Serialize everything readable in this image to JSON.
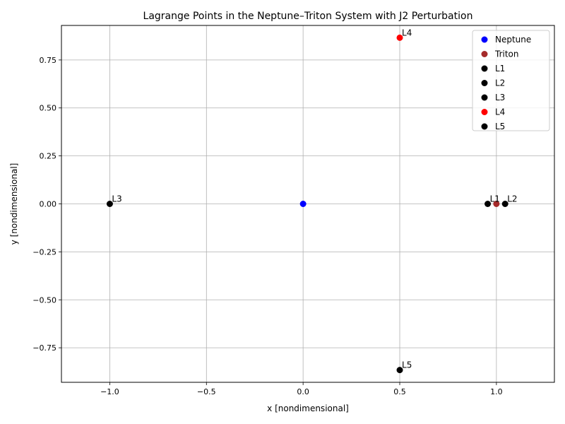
{
  "chart_data": {
    "type": "scatter",
    "title": "Lagrange Points in the Neptune–Triton System with J2 Perturbation",
    "xlabel": "x [nondimensional]",
    "ylabel": "y [nondimensional]",
    "xlim": [
      -1.25,
      1.3
    ],
    "ylim": [
      -0.93,
      0.93
    ],
    "xticks": [
      -1.0,
      -0.5,
      0.0,
      0.5,
      1.0
    ],
    "xtick_labels": [
      "−1.0",
      "−0.5",
      "0.0",
      "0.5",
      "1.0"
    ],
    "yticks": [
      -0.75,
      -0.5,
      -0.25,
      0.0,
      0.25,
      0.5,
      0.75
    ],
    "ytick_labels": [
      "−0.75",
      "−0.50",
      "−0.25",
      "0.00",
      "0.25",
      "0.50",
      "0.75"
    ],
    "grid": true,
    "legend_position": "top-right",
    "series": [
      {
        "name": "Neptune",
        "color": "#0000ff",
        "points": [
          {
            "x": 0.0,
            "y": 0.0
          }
        ],
        "label": ""
      },
      {
        "name": "Triton",
        "color": "#a52a2a",
        "points": [
          {
            "x": 1.0,
            "y": 0.0
          }
        ],
        "label": ""
      },
      {
        "name": "L1",
        "color": "#000000",
        "points": [
          {
            "x": 0.955,
            "y": 0.0
          }
        ],
        "label": "L1"
      },
      {
        "name": "L2",
        "color": "#000000",
        "points": [
          {
            "x": 1.045,
            "y": 0.0
          }
        ],
        "label": "L2"
      },
      {
        "name": "L3",
        "color": "#000000",
        "points": [
          {
            "x": -1.0,
            "y": 0.0
          }
        ],
        "label": "L3"
      },
      {
        "name": "L4",
        "color": "#ff0000",
        "points": [
          {
            "x": 0.5,
            "y": 0.866
          }
        ],
        "label": "L4"
      },
      {
        "name": "L5",
        "color": "#000000",
        "points": [
          {
            "x": 0.5,
            "y": -0.866
          }
        ],
        "label": "L5"
      }
    ]
  }
}
